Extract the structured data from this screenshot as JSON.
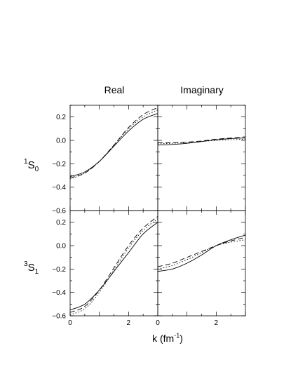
{
  "column_titles": [
    "Real",
    "Imaginary"
  ],
  "row_labels": [
    {
      "sup": "1",
      "main": "S",
      "sub": "0"
    },
    {
      "sup": "3",
      "main": "S",
      "sub": "1"
    }
  ],
  "xaxis_label": {
    "main": "k  (fm",
    "sup": "-1",
    "close": ")"
  },
  "chart_data": {
    "type": "line",
    "layout": "2x2 grid, shared axes, legend: none",
    "xlim": [
      0,
      3
    ],
    "ylim": [
      -0.6,
      0.3
    ],
    "xticks": [
      0,
      2
    ],
    "yticks": [
      -0.6,
      -0.4,
      -0.2,
      0.0,
      0.2
    ],
    "xtick_labels": [
      "0",
      "2"
    ],
    "ytick_labels": [
      "−0.6",
      "−0.4",
      "−0.2",
      "0.0",
      "0.2"
    ],
    "panels": [
      {
        "row": 0,
        "col": 0,
        "series": [
          {
            "style": "solid",
            "x": [
              0,
              0.5,
              1.0,
              1.5,
              2.0,
              2.5,
              3.0
            ],
            "y": [
              -0.31,
              -0.27,
              -0.18,
              -0.05,
              0.08,
              0.18,
              0.23
            ]
          },
          {
            "style": "dashed",
            "x": [
              0,
              0.5,
              1.0,
              1.5,
              2.0,
              2.5,
              3.0
            ],
            "y": [
              -0.32,
              -0.28,
              -0.18,
              -0.04,
              0.11,
              0.22,
              0.28
            ]
          },
          {
            "style": "dotted",
            "x": [
              0,
              0.5,
              1.0,
              1.5,
              2.0,
              2.5,
              3.0
            ],
            "y": [
              -0.33,
              -0.28,
              -0.18,
              -0.04,
              0.1,
              0.2,
              0.26
            ]
          }
        ]
      },
      {
        "row": 0,
        "col": 1,
        "series": [
          {
            "style": "solid",
            "x": [
              0,
              0.5,
              1.0,
              1.5,
              2.0,
              2.5,
              3.0
            ],
            "y": [
              -0.04,
              -0.035,
              -0.025,
              -0.01,
              0.005,
              0.015,
              0.02
            ]
          },
          {
            "style": "dashed",
            "x": [
              0,
              0.5,
              1.0,
              1.5,
              2.0,
              2.5,
              3.0
            ],
            "y": [
              -0.02,
              -0.02,
              -0.015,
              -0.005,
              0.01,
              0.02,
              0.03
            ]
          },
          {
            "style": "dotted",
            "x": [
              0,
              0.5,
              1.0,
              1.5,
              2.0,
              2.5,
              3.0
            ],
            "y": [
              -0.03,
              -0.025,
              -0.02,
              -0.01,
              0.0,
              0.005,
              0.01
            ]
          }
        ]
      },
      {
        "row": 1,
        "col": 0,
        "series": [
          {
            "style": "solid",
            "x": [
              0,
              0.5,
              1.0,
              1.5,
              2.0,
              2.5,
              3.0
            ],
            "y": [
              -0.55,
              -0.5,
              -0.38,
              -0.22,
              -0.06,
              0.1,
              0.2
            ]
          },
          {
            "style": "dashed",
            "x": [
              0,
              0.5,
              1.0,
              1.5,
              2.0,
              2.5,
              3.0
            ],
            "y": [
              -0.57,
              -0.52,
              -0.38,
              -0.19,
              0.0,
              0.15,
              0.25
            ]
          },
          {
            "style": "dotted",
            "x": [
              0,
              0.5,
              1.0,
              1.5,
              2.0,
              2.5,
              3.0
            ],
            "y": [
              -0.59,
              -0.54,
              -0.4,
              -0.21,
              -0.02,
              0.13,
              0.23
            ]
          }
        ]
      },
      {
        "row": 1,
        "col": 1,
        "series": [
          {
            "style": "solid",
            "x": [
              0,
              0.5,
              1.0,
              1.5,
              2.0,
              2.5,
              3.0
            ],
            "y": [
              -0.22,
              -0.2,
              -0.15,
              -0.08,
              0.0,
              0.05,
              0.09
            ]
          },
          {
            "style": "dashed",
            "x": [
              0,
              0.5,
              1.0,
              1.5,
              2.0,
              2.5,
              3.0
            ],
            "y": [
              -0.18,
              -0.15,
              -0.1,
              -0.05,
              0.0,
              0.04,
              0.07
            ]
          },
          {
            "style": "dotted",
            "x": [
              0,
              0.5,
              1.0,
              1.5,
              2.0,
              2.5,
              3.0
            ],
            "y": [
              -0.2,
              -0.17,
              -0.12,
              -0.06,
              0.0,
              0.03,
              0.05
            ]
          }
        ]
      }
    ]
  }
}
